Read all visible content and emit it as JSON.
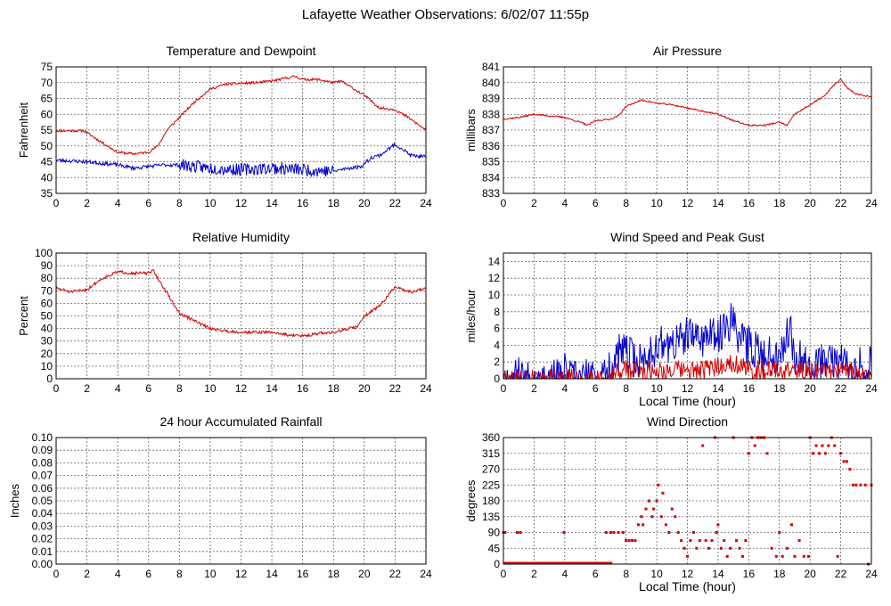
{
  "title": "Lafayette Weather Observations: 6/02/07 11:55p",
  "chart_data": [
    {
      "id": "temp",
      "type": "line",
      "title": "Temperature and Dewpoint",
      "xlabel": "",
      "ylabel": "Fahrenheit",
      "xlim": [
        0,
        24
      ],
      "ylim": [
        35,
        75
      ],
      "xticks": [
        0,
        2,
        4,
        6,
        8,
        10,
        12,
        14,
        16,
        18,
        20,
        22,
        24
      ],
      "yticks": [
        35,
        40,
        45,
        50,
        55,
        60,
        65,
        70,
        75
      ],
      "ytick_labels": [
        "35",
        "40",
        "45",
        "50",
        "55",
        "60",
        "65",
        "70",
        "75"
      ],
      "grid": true,
      "series": [
        {
          "color": "#d40000",
          "noise": 0.4,
          "seed": 11,
          "x": [
            0,
            1.8,
            3,
            4,
            5,
            6,
            6.6,
            7.2,
            8,
            9,
            10,
            11,
            12,
            13,
            14,
            15,
            15.5,
            16,
            17,
            18,
            18.5,
            19,
            20,
            21,
            22,
            23,
            24
          ],
          "y": [
            54.8,
            54.8,
            51,
            48,
            47.5,
            48,
            50,
            55,
            59,
            64,
            68,
            69.5,
            69.8,
            70,
            70.5,
            71.5,
            72,
            71,
            71,
            70,
            70.5,
            69,
            66,
            62,
            61.5,
            58.5,
            55
          ]
        },
        {
          "color": "#0000cc",
          "noise": 0.6,
          "seed": 23,
          "noisy": [
            [
              8,
              18,
              2.0
            ]
          ],
          "x": [
            0,
            2,
            3,
            4,
            5,
            6,
            7,
            8,
            10,
            12,
            14,
            16,
            18,
            19,
            19.8,
            20.5,
            21,
            22,
            22.5,
            23,
            24
          ],
          "y": [
            45.5,
            45,
            44.5,
            44,
            43,
            43.5,
            44,
            44,
            43,
            42.5,
            43,
            42.5,
            42,
            43,
            43.5,
            46.5,
            47,
            50.5,
            49,
            47,
            46.5
          ]
        }
      ]
    },
    {
      "id": "pressure",
      "type": "line",
      "title": "Air Pressure",
      "xlabel": "",
      "ylabel": "millibars",
      "xlim": [
        0,
        24
      ],
      "ylim": [
        833,
        841
      ],
      "xticks": [
        0,
        2,
        4,
        6,
        8,
        10,
        12,
        14,
        16,
        18,
        20,
        22,
        24
      ],
      "yticks": [
        833,
        834,
        835,
        836,
        837,
        838,
        839,
        840,
        841
      ],
      "ytick_labels": [
        "833",
        "834",
        "835",
        "836",
        "837",
        "838",
        "839",
        "840",
        "841"
      ],
      "grid": true,
      "series": [
        {
          "color": "#d40000",
          "noise": 0.05,
          "seed": 37,
          "x": [
            0,
            1,
            2,
            3,
            4,
            5,
            5.5,
            6,
            7,
            7.5,
            8,
            9,
            10,
            11,
            12,
            13,
            14,
            15,
            16,
            17,
            18,
            18.5,
            19,
            20,
            21,
            21.5,
            22,
            22.5,
            23,
            24
          ],
          "y": [
            837.7,
            837.8,
            838.0,
            837.9,
            837.8,
            837.5,
            837.3,
            837.6,
            837.7,
            837.9,
            838.5,
            838.9,
            838.7,
            838.6,
            838.4,
            838.2,
            838.0,
            837.6,
            837.3,
            837.3,
            837.5,
            837.3,
            838.0,
            838.6,
            839.2,
            839.8,
            840.2,
            839.6,
            839.3,
            839.1
          ]
        }
      ]
    },
    {
      "id": "humidity",
      "type": "line",
      "title": "Relative Humidity",
      "xlabel": "",
      "ylabel": "Percent",
      "xlim": [
        0,
        24
      ],
      "ylim": [
        0,
        100
      ],
      "xticks": [
        0,
        2,
        4,
        6,
        8,
        10,
        12,
        14,
        16,
        18,
        20,
        22,
        24
      ],
      "yticks": [
        0,
        10,
        20,
        30,
        40,
        50,
        60,
        70,
        80,
        90,
        100
      ],
      "ytick_labels": [
        "0",
        "10",
        "20",
        "30",
        "40",
        "50",
        "60",
        "70",
        "80",
        "90",
        "100"
      ],
      "grid": true,
      "series": [
        {
          "color": "#d40000",
          "noise": 1.2,
          "seed": 51,
          "x": [
            0,
            1,
            2,
            3,
            4,
            5,
            6,
            6.3,
            7,
            8,
            9,
            10,
            11,
            12,
            13,
            14,
            15,
            16,
            17,
            18,
            19,
            19.5,
            20,
            21,
            22,
            22.5,
            23,
            24
          ],
          "y": [
            72,
            69,
            71,
            80,
            85,
            84,
            84,
            86,
            72,
            52,
            46,
            40,
            38,
            37,
            37,
            37,
            35,
            34,
            36,
            37,
            40,
            41,
            50,
            58,
            73,
            71,
            69,
            72
          ]
        }
      ]
    },
    {
      "id": "wind",
      "type": "line",
      "title": "Wind Speed and Peak Gust",
      "xlabel": "Local Time (hour)",
      "ylabel": "miles/hour",
      "xlim": [
        0,
        24
      ],
      "ylim": [
        0,
        15
      ],
      "xticks": [
        0,
        2,
        4,
        6,
        8,
        10,
        12,
        14,
        16,
        18,
        20,
        22,
        24
      ],
      "yticks": [
        0,
        2,
        4,
        6,
        8,
        10,
        12,
        14
      ],
      "ytick_labels": [
        "0",
        "2",
        "4",
        "6",
        "8",
        "10",
        "12",
        "14"
      ],
      "grid": true,
      "series": [
        {
          "color": "#0000cc",
          "noise": 2.4,
          "seed": 67,
          "clip0": true,
          "x": [
            0,
            0.05,
            0.1,
            0.2,
            0.8,
            0.9,
            1.0,
            1.1,
            3.9,
            4.0,
            4.05,
            4.1,
            6.5,
            7.0,
            7.5,
            8,
            9,
            10,
            11,
            12,
            13,
            14,
            14.8,
            15,
            15.2,
            16,
            17,
            18,
            18.7,
            19,
            20,
            21,
            22,
            23,
            23.5,
            24
          ],
          "y": [
            1,
            1,
            0,
            0,
            0,
            1,
            1,
            0,
            0,
            1,
            1,
            0,
            0,
            1,
            3,
            3,
            2,
            4,
            4,
            5,
            5,
            5,
            7,
            9,
            5,
            4,
            3,
            3,
            6,
            3,
            2,
            2,
            2,
            2,
            1.5,
            1.5
          ]
        },
        {
          "color": "#d40000",
          "noise": 1.2,
          "seed": 79,
          "clip0": true,
          "x": [
            0,
            6.8,
            7,
            8,
            9,
            10,
            11,
            12,
            13,
            14,
            15,
            16,
            17,
            18,
            19,
            20,
            21,
            22,
            23,
            24
          ],
          "y": [
            0,
            0,
            0.5,
            1,
            1,
            1,
            1,
            1,
            1,
            1.5,
            2,
            1,
            1,
            1,
            1,
            1,
            1,
            1,
            0.5,
            0.5
          ]
        }
      ]
    },
    {
      "id": "rain",
      "type": "line",
      "title": "24 hour Accumulated Rainfall",
      "xlabel": "",
      "ylabel": "Inches",
      "xlim": [
        0,
        24
      ],
      "ylim": [
        0,
        0.1
      ],
      "xticks": [
        0,
        2,
        4,
        6,
        8,
        10,
        12,
        14,
        16,
        18,
        20,
        22,
        24
      ],
      "yticks": [
        0,
        0.01,
        0.02,
        0.03,
        0.04,
        0.05,
        0.06,
        0.07,
        0.08,
        0.09,
        0.1
      ],
      "ytick_labels": [
        "0.00",
        "0.01",
        "0.02",
        "0.03",
        "0.04",
        "0.05",
        "0.06",
        "0.07",
        "0.08",
        "0.09",
        "0.10"
      ],
      "grid": true,
      "series": [
        {
          "color": "#d40000",
          "noise": 0,
          "seed": 1,
          "x": [
            0,
            24
          ],
          "y": [
            0,
            0
          ]
        }
      ]
    },
    {
      "id": "direction",
      "type": "scatter",
      "title": "Wind Direction",
      "xlabel": "Local Time (hour)",
      "ylabel": "degrees",
      "xlim": [
        0,
        24
      ],
      "ylim": [
        0,
        360
      ],
      "xticks": [
        0,
        2,
        4,
        6,
        8,
        10,
        12,
        14,
        16,
        18,
        20,
        22,
        24
      ],
      "yticks": [
        0,
        45,
        90,
        135,
        180,
        225,
        270,
        315,
        360
      ],
      "ytick_labels": [
        "0",
        "45",
        "90",
        "135",
        "180",
        "225",
        "270",
        "315",
        "360"
      ],
      "grid": true,
      "series": [
        {
          "color": "#d40000",
          "x": [
            0,
            0.1,
            0.9,
            1.1,
            3.95,
            6.7,
            7.0,
            7.2,
            7.5,
            7.8,
            8.0,
            8.2,
            8.4,
            8.6,
            8.8,
            9.0,
            9.1,
            9.3,
            9.5,
            9.7,
            9.8,
            10.0,
            10.1,
            10.3,
            10.4,
            10.6,
            10.8,
            11.0,
            11.2,
            11.4,
            11.6,
            11.8,
            12.0,
            12.2,
            12.4,
            12.6,
            12.8,
            13.0,
            13.2,
            13.4,
            13.6,
            13.8,
            13.9,
            14.0,
            14.2,
            14.4,
            14.6,
            14.8,
            15.0,
            15.2,
            15.4,
            15.6,
            15.8,
            16.0,
            16.2,
            16.4,
            16.6,
            16.8,
            17.0,
            17.2,
            17.5,
            17.8,
            18.0,
            18.2,
            18.5,
            18.8,
            19.0,
            19.3,
            19.6,
            19.9,
            20.0,
            20.2,
            20.4,
            20.6,
            20.8,
            21.0,
            21.2,
            21.4,
            21.6,
            21.8,
            22.0,
            22.2,
            22.4,
            22.6,
            22.8,
            23.0,
            23.3,
            23.6,
            23.8,
            24.0
          ],
          "y": [
            90,
            90,
            90,
            90,
            90,
            90,
            90,
            90,
            90,
            90,
            67,
            67,
            67,
            67,
            112,
            135,
            112,
            157,
            180,
            135,
            157,
            180,
            225,
            135,
            202,
            112,
            90,
            157,
            135,
            90,
            67,
            45,
            22,
            67,
            90,
            45,
            67,
            337,
            67,
            45,
            67,
            360,
            90,
            112,
            45,
            67,
            22,
            45,
            360,
            67,
            45,
            22,
            67,
            315,
            360,
            337,
            360,
            360,
            360,
            315,
            45,
            22,
            90,
            22,
            45,
            112,
            22,
            67,
            22,
            22,
            360,
            315,
            337,
            315,
            337,
            315,
            337,
            360,
            337,
            22,
            315,
            292,
            292,
            270,
            225,
            225,
            225,
            225,
            0,
            225
          ]
        },
        {
          "color": "#d40000",
          "bar": true,
          "x": [
            0,
            7.1
          ],
          "y": [
            0,
            0
          ]
        }
      ]
    }
  ]
}
